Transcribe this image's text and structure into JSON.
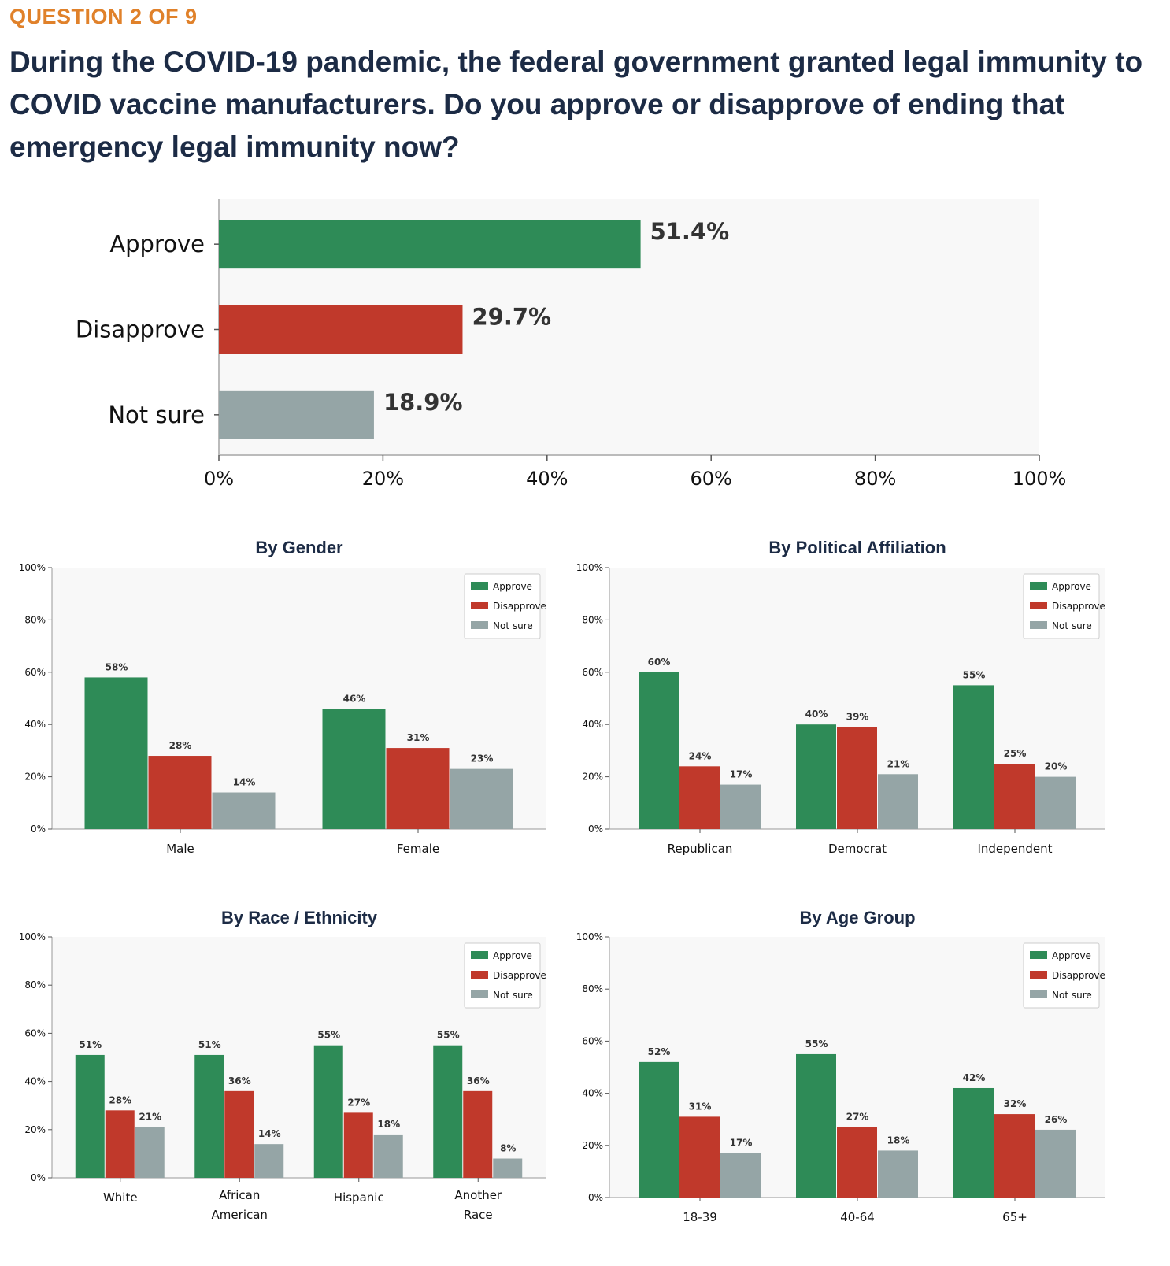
{
  "header": {
    "question_number": "QUESTION 2 OF 9",
    "question_text": "During the COVID-19 pandemic, the federal government granted legal immunity to COVID vaccine manufacturers. Do you approve or disapprove of ending that emergency legal immunity now?"
  },
  "colors": {
    "approve": "#2e8b57",
    "disapprove": "#c0392b",
    "not_sure": "#95a5a6",
    "panel_bg": "#f8f8f8",
    "title": "#1c2b45",
    "accent": "#e0812a"
  },
  "chart_data": [
    {
      "type": "bar",
      "orientation": "horizontal",
      "title": "",
      "categories": [
        "Approve",
        "Disapprove",
        "Not sure"
      ],
      "values": [
        51.4,
        29.7,
        18.9
      ],
      "value_labels": [
        "51.4%",
        "29.7%",
        "18.9%"
      ],
      "xlim": [
        0,
        100
      ],
      "x_ticks": [
        "0%",
        "20%",
        "40%",
        "60%",
        "80%",
        "100%"
      ]
    },
    {
      "type": "bar",
      "title": "By Gender",
      "categories": [
        "Male",
        "Female"
      ],
      "series": [
        {
          "name": "Approve",
          "values": [
            58,
            46
          ]
        },
        {
          "name": "Disapprove",
          "values": [
            28,
            31
          ]
        },
        {
          "name": "Not sure",
          "values": [
            14,
            23
          ]
        }
      ],
      "ylim": [
        0,
        100
      ],
      "y_ticks": [
        "0%",
        "20%",
        "40%",
        "60%",
        "80%",
        "100%"
      ],
      "legend": "top-right"
    },
    {
      "type": "bar",
      "title": "By Political Affiliation",
      "categories": [
        "Republican",
        "Democrat",
        "Independent"
      ],
      "series": [
        {
          "name": "Approve",
          "values": [
            60,
            40,
            55
          ]
        },
        {
          "name": "Disapprove",
          "values": [
            24,
            39,
            25
          ]
        },
        {
          "name": "Not sure",
          "values": [
            17,
            21,
            20
          ]
        }
      ],
      "ylim": [
        0,
        100
      ],
      "y_ticks": [
        "0%",
        "20%",
        "40%",
        "60%",
        "80%",
        "100%"
      ],
      "legend": "top-right"
    },
    {
      "type": "bar",
      "title": "By Race / Ethnicity",
      "categories": [
        "White",
        "African American",
        "Hispanic",
        "Another Race"
      ],
      "series": [
        {
          "name": "Approve",
          "values": [
            51,
            51,
            55,
            55
          ]
        },
        {
          "name": "Disapprove",
          "values": [
            28,
            36,
            27,
            36
          ]
        },
        {
          "name": "Not sure",
          "values": [
            21,
            14,
            18,
            8
          ]
        }
      ],
      "ylim": [
        0,
        100
      ],
      "y_ticks": [
        "0%",
        "20%",
        "40%",
        "60%",
        "80%",
        "100%"
      ],
      "legend": "top-right"
    },
    {
      "type": "bar",
      "title": "By Age Group",
      "categories": [
        "18-39",
        "40-64",
        "65+"
      ],
      "series": [
        {
          "name": "Approve",
          "values": [
            52,
            55,
            42
          ]
        },
        {
          "name": "Disapprove",
          "values": [
            31,
            27,
            32
          ]
        },
        {
          "name": "Not sure",
          "values": [
            17,
            18,
            26
          ]
        }
      ],
      "ylim": [
        0,
        100
      ],
      "y_ticks": [
        "0%",
        "20%",
        "40%",
        "60%",
        "80%",
        "100%"
      ],
      "legend": "top-right"
    }
  ]
}
